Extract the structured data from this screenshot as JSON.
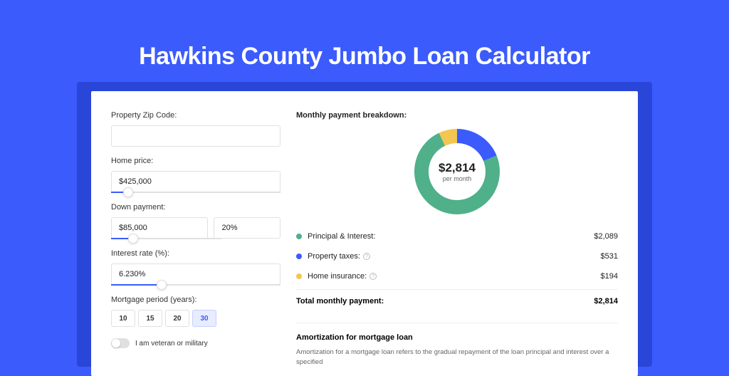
{
  "title": "Hawkins County Jumbo Loan Calculator",
  "colors": {
    "page_bg": "#3b5bfd",
    "shadow": "#2a46d8",
    "principal": "#4fb08a",
    "taxes": "#3b5bfd",
    "insurance": "#f3c651"
  },
  "form": {
    "zip": {
      "label": "Property Zip Code:",
      "value": ""
    },
    "price": {
      "label": "Home price:",
      "value": "$425,000",
      "slider_pct": 10
    },
    "down": {
      "label": "Down payment:",
      "value": "$85,000",
      "pct": "20%",
      "slider_pct": 20
    },
    "rate": {
      "label": "Interest rate (%):",
      "value": "6.230%",
      "slider_pct": 30
    },
    "period": {
      "label": "Mortgage period (years):",
      "options": [
        "10",
        "15",
        "20",
        "30"
      ],
      "selected": "30"
    },
    "veteran": {
      "label": "I am veteran or military",
      "checked": false
    }
  },
  "breakdown": {
    "heading": "Monthly payment breakdown:",
    "center_amount": "$2,814",
    "center_sub": "per month",
    "items": [
      {
        "key": "principal",
        "label": "Principal & Interest:",
        "value": "$2,089",
        "color": "#4fb08a",
        "info": false,
        "angle": 267
      },
      {
        "key": "taxes",
        "label": "Property taxes:",
        "value": "$531",
        "color": "#3b5bfd",
        "info": true,
        "angle": 68
      },
      {
        "key": "insurance",
        "label": "Home insurance:",
        "value": "$194",
        "color": "#f3c651",
        "info": true,
        "angle": 25
      }
    ],
    "total_label": "Total monthly payment:",
    "total_value": "$2,814"
  },
  "amortization": {
    "heading": "Amortization for mortgage loan",
    "text": "Amortization for a mortgage loan refers to the gradual repayment of the loan principal and interest over a specified"
  }
}
